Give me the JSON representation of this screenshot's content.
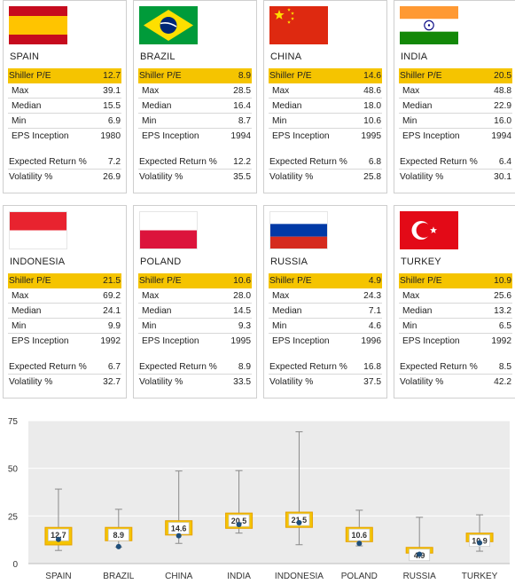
{
  "labels": {
    "pe": "Shiller P/E",
    "max": "Max",
    "median": "Median",
    "min": "Min",
    "eps": "EPS Inception",
    "exp": "Expected Return %",
    "vol": "Volatility %"
  },
  "countries": [
    {
      "name": "SPAIN",
      "flag": "spain-flag",
      "pe": "12.7",
      "max": "39.1",
      "median": "15.5",
      "min": "6.9",
      "eps": "1980",
      "exp": "7.2",
      "vol": "26.9"
    },
    {
      "name": "BRAZIL",
      "flag": "brazil-flag",
      "pe": "8.9",
      "max": "28.5",
      "median": "16.4",
      "min": "8.7",
      "eps": "1994",
      "exp": "12.2",
      "vol": "35.5"
    },
    {
      "name": "CHINA",
      "flag": "china-flag",
      "pe": "14.6",
      "max": "48.6",
      "median": "18.0",
      "min": "10.6",
      "eps": "1995",
      "exp": "6.8",
      "vol": "25.8"
    },
    {
      "name": "INDIA",
      "flag": "india-flag",
      "pe": "20.5",
      "max": "48.8",
      "median": "22.9",
      "min": "16.0",
      "eps": "1994",
      "exp": "6.4",
      "vol": "30.1"
    },
    {
      "name": "INDONESIA",
      "flag": "indonesia-flag",
      "pe": "21.5",
      "max": "69.2",
      "median": "24.1",
      "min": "9.9",
      "eps": "1992",
      "exp": "6.7",
      "vol": "32.7"
    },
    {
      "name": "POLAND",
      "flag": "poland-flag",
      "pe": "10.6",
      "max": "28.0",
      "median": "14.5",
      "min": "9.3",
      "eps": "1995",
      "exp": "8.9",
      "vol": "33.5"
    },
    {
      "name": "RUSSIA",
      "flag": "russia-flag",
      "pe": "4.9",
      "max": "24.3",
      "median": "7.1",
      "min": "4.6",
      "eps": "1996",
      "exp": "16.8",
      "vol": "37.5"
    },
    {
      "name": "TURKEY",
      "flag": "turkey-flag",
      "pe": "10.9",
      "max": "25.6",
      "median": "13.2",
      "min": "6.5",
      "eps": "1992",
      "exp": "8.5",
      "vol": "42.2"
    }
  ],
  "colors": {
    "highlight": "#f5c400",
    "box_fill": "#f5c400",
    "box_border": "#e6a100",
    "marker": "#1f4e79",
    "plot_bg": "#ebebeb"
  },
  "chart_data": {
    "type": "box",
    "categories": [
      "SPAIN",
      "BRAZIL",
      "CHINA",
      "INDIA",
      "INDONESIA",
      "POLAND",
      "RUSSIA",
      "TURKEY"
    ],
    "current": [
      12.7,
      8.9,
      14.6,
      20.5,
      21.5,
      10.6,
      4.9,
      10.9
    ],
    "max": [
      39.1,
      28.5,
      48.6,
      48.8,
      69.2,
      28.0,
      24.3,
      25.6
    ],
    "median": [
      15.5,
      16.4,
      18.0,
      22.9,
      24.1,
      14.5,
      7.1,
      13.2
    ],
    "min": [
      6.9,
      8.7,
      10.6,
      16.0,
      9.9,
      9.3,
      4.6,
      6.5
    ],
    "marker": [
      12.7,
      8.9,
      14.6,
      20.5,
      21.5,
      10.6,
      4.9,
      10.9
    ],
    "box_low": [
      9.8,
      12.0,
      15.0,
      18.5,
      19.0,
      11.5,
      5.5,
      11.5
    ],
    "box_high": [
      19.0,
      19.0,
      22.5,
      26.5,
      27.0,
      19.0,
      8.5,
      16.0
    ],
    "y_ticks": [
      0,
      25,
      50,
      75
    ],
    "ylim": [
      0,
      75
    ],
    "grid": true
  }
}
